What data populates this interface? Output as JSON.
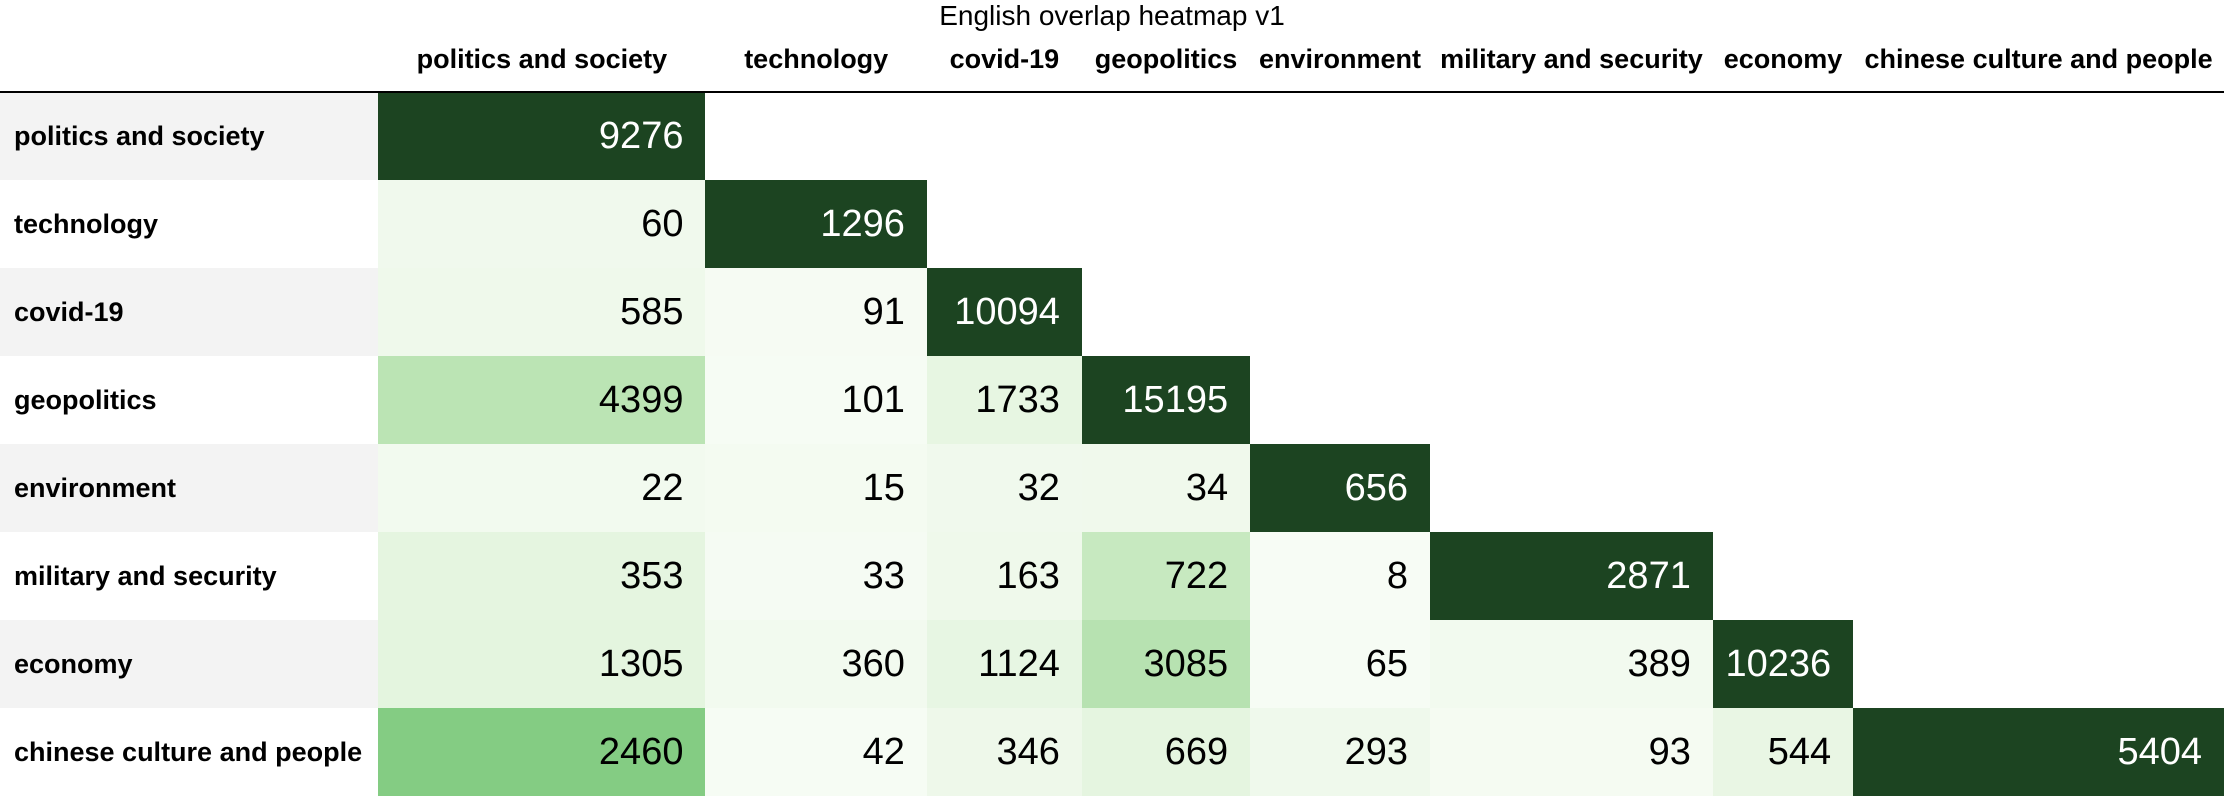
{
  "chart_data": {
    "type": "heatmap",
    "title": "English overlap heatmap v1",
    "colormap": "Greens",
    "x_labels": [
      "politics and society",
      "technology",
      "covid-19",
      "geopolitics",
      "environment",
      "military and security",
      "economy",
      "chinese culture and people"
    ],
    "y_labels": [
      "politics and society",
      "technology",
      "covid-19",
      "geopolitics",
      "environment",
      "military and security",
      "economy",
      "chinese culture and people"
    ],
    "matrix": [
      [
        9276,
        null,
        null,
        null,
        null,
        null,
        null,
        null
      ],
      [
        60,
        1296,
        null,
        null,
        null,
        null,
        null,
        null
      ],
      [
        585,
        91,
        10094,
        null,
        null,
        null,
        null,
        null
      ],
      [
        4399,
        101,
        1733,
        15195,
        null,
        null,
        null,
        null
      ],
      [
        22,
        15,
        32,
        34,
        656,
        null,
        null,
        null
      ],
      [
        353,
        33,
        163,
        722,
        8,
        2871,
        null,
        null
      ],
      [
        1305,
        360,
        1124,
        3085,
        65,
        389,
        10236,
        null
      ],
      [
        2460,
        42,
        346,
        669,
        293,
        93,
        544,
        5404
      ]
    ]
  }
}
